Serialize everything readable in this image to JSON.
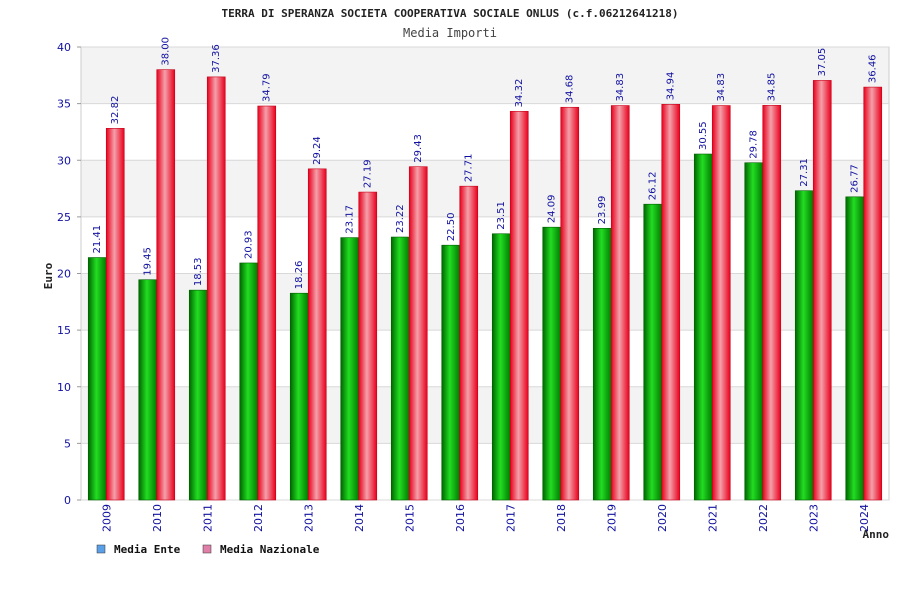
{
  "chart_data": {
    "type": "bar",
    "title": "TERRA DI SPERANZA SOCIETA COOPERATIVA SOCIALE ONLUS (c.f.06212641218)",
    "subtitle": "Media Importi",
    "ylabel": "Euro",
    "xlabel": "Anno",
    "ylim": [
      0,
      40
    ],
    "yticks": [
      "0",
      "5",
      "10",
      "15",
      "20",
      "25",
      "30",
      "35",
      "40"
    ],
    "categories": [
      "2009",
      "2010",
      "2011",
      "2012",
      "2013",
      "2014",
      "2015",
      "2016",
      "2017",
      "2018",
      "2019",
      "2020",
      "2021",
      "2022",
      "2023",
      "2024"
    ],
    "series": [
      {
        "name": "Media Ente",
        "color": "#00a000",
        "values": [
          21.41,
          19.45,
          18.53,
          20.93,
          18.26,
          23.17,
          23.22,
          22.5,
          23.51,
          24.09,
          23.99,
          26.12,
          30.55,
          29.78,
          27.31,
          26.77
        ],
        "labels": [
          "21.41",
          "19.45",
          "18.53",
          "20.93",
          "18.26",
          "23.17",
          "23.22",
          "22.50",
          "23.51",
          "24.09",
          "23.99",
          "26.12",
          "30.55",
          "29.78",
          "27.31",
          "26.77"
        ]
      },
      {
        "name": "Media Nazionale",
        "color": "#e8001c",
        "values": [
          32.82,
          38.0,
          37.36,
          34.79,
          29.24,
          27.19,
          29.43,
          27.71,
          34.32,
          34.68,
          34.83,
          34.94,
          34.83,
          34.85,
          37.05,
          36.46
        ],
        "labels": [
          "32.82",
          "38.00",
          "37.36",
          "34.79",
          "29.24",
          "27.19",
          "29.43",
          "27.71",
          "34.32",
          "34.68",
          "34.83",
          "34.94",
          "34.83",
          "34.85",
          "37.05",
          "36.46"
        ]
      }
    ],
    "legend": {
      "placement": "bottom-left",
      "items": [
        {
          "label": "Media Ente",
          "swatch": "#5aa0e8"
        },
        {
          "label": "Media Nazionale",
          "swatch": "#e080a8"
        }
      ]
    },
    "grid": true,
    "band_colors": [
      "#f3f3f3",
      "#ffffff"
    ]
  }
}
